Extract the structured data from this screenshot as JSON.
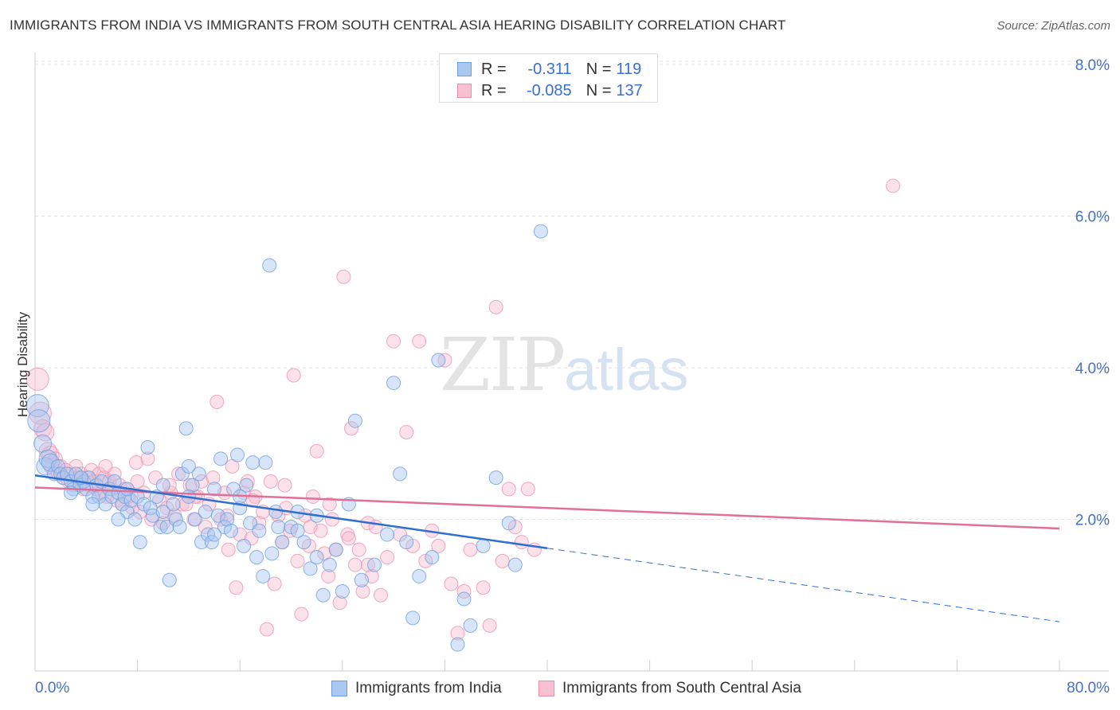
{
  "header": {
    "title": "IMMIGRANTS FROM INDIA VS IMMIGRANTS FROM SOUTH CENTRAL ASIA HEARING DISABILITY CORRELATION CHART",
    "source": "Source: ZipAtlas.com"
  },
  "watermark": {
    "zip": "ZIP",
    "atlas": "atlas"
  },
  "legend": {
    "r_label": "R =",
    "n_label": "N =",
    "rows": [
      {
        "r": "-0.311",
        "n": "119",
        "color": "#aac8f0",
        "border": "#6a9ee0"
      },
      {
        "r": "-0.085",
        "n": "137",
        "color": "#f8c0d0",
        "border": "#e890aa"
      }
    ]
  },
  "chart_data": {
    "type": "scatter",
    "title": "IMMIGRANTS FROM INDIA VS IMMIGRANTS FROM SOUTH CENTRAL ASIA HEARING DISABILITY CORRELATION CHART",
    "xlabel": "",
    "ylabel": "Hearing Disability",
    "xlim": [
      0,
      80
    ],
    "ylim": [
      0,
      8.2
    ],
    "x_tick_labels": [
      "0.0%",
      "80.0%"
    ],
    "y_ticks": [
      2.0,
      4.0,
      6.0,
      8.0
    ],
    "y_tick_labels": [
      "2.0%",
      "4.0%",
      "6.0%",
      "8.0%"
    ],
    "grid": true,
    "series": [
      {
        "name": "Immigrants from India",
        "color": "#6f9fe0",
        "fill": "#a9c6f0",
        "points": [
          [
            0.2,
            3.5
          ],
          [
            0.3,
            3.3
          ],
          [
            0.6,
            3.0
          ],
          [
            0.8,
            2.7
          ],
          [
            1.0,
            2.8
          ],
          [
            1.2,
            2.75
          ],
          [
            1.5,
            2.6
          ],
          [
            1.8,
            2.7
          ],
          [
            2.0,
            2.6
          ],
          [
            2.2,
            2.55
          ],
          [
            2.5,
            2.6
          ],
          [
            2.8,
            2.5
          ],
          [
            3.0,
            2.4
          ],
          [
            3.2,
            2.6
          ],
          [
            3.5,
            2.45
          ],
          [
            3.8,
            2.5
          ],
          [
            4.0,
            2.4
          ],
          [
            4.2,
            2.55
          ],
          [
            4.5,
            2.3
          ],
          [
            4.8,
            2.45
          ],
          [
            5.0,
            2.3
          ],
          [
            5.2,
            2.5
          ],
          [
            5.5,
            2.2
          ],
          [
            5.8,
            2.4
          ],
          [
            6.0,
            2.3
          ],
          [
            6.2,
            2.5
          ],
          [
            6.5,
            2.35
          ],
          [
            6.8,
            2.2
          ],
          [
            7.0,
            2.3
          ],
          [
            7.2,
            2.1
          ],
          [
            7.5,
            2.25
          ],
          [
            7.8,
            2.0
          ],
          [
            8.0,
            2.3
          ],
          [
            8.2,
            1.7
          ],
          [
            8.5,
            2.2
          ],
          [
            8.8,
            2.95
          ],
          [
            9.0,
            2.15
          ],
          [
            9.2,
            2.05
          ],
          [
            9.5,
            2.3
          ],
          [
            9.8,
            1.9
          ],
          [
            10.0,
            2.1
          ],
          [
            10.3,
            1.9
          ],
          [
            10.5,
            1.2
          ],
          [
            10.8,
            2.2
          ],
          [
            11.0,
            2.0
          ],
          [
            11.3,
            1.9
          ],
          [
            11.5,
            2.6
          ],
          [
            11.8,
            3.2
          ],
          [
            12.0,
            2.7
          ],
          [
            12.3,
            2.45
          ],
          [
            12.5,
            2.0
          ],
          [
            12.8,
            2.6
          ],
          [
            13.0,
            1.7
          ],
          [
            13.3,
            2.1
          ],
          [
            13.5,
            1.8
          ],
          [
            13.8,
            1.7
          ],
          [
            14.0,
            2.4
          ],
          [
            14.3,
            2.05
          ],
          [
            14.5,
            2.8
          ],
          [
            14.8,
            1.9
          ],
          [
            15.0,
            2.0
          ],
          [
            15.3,
            1.85
          ],
          [
            15.5,
            2.4
          ],
          [
            15.8,
            2.85
          ],
          [
            16.0,
            2.15
          ],
          [
            16.3,
            1.65
          ],
          [
            16.5,
            2.45
          ],
          [
            16.8,
            1.95
          ],
          [
            17.0,
            2.75
          ],
          [
            17.3,
            1.5
          ],
          [
            17.5,
            1.85
          ],
          [
            17.8,
            1.25
          ],
          [
            18.0,
            2.75
          ],
          [
            18.3,
            5.35
          ],
          [
            18.5,
            1.55
          ],
          [
            18.8,
            2.1
          ],
          [
            19.0,
            1.9
          ],
          [
            19.3,
            1.7
          ],
          [
            20.0,
            1.9
          ],
          [
            20.5,
            2.1
          ],
          [
            21.0,
            1.7
          ],
          [
            21.5,
            1.35
          ],
          [
            22.0,
            1.5
          ],
          [
            22.5,
            1.0
          ],
          [
            23.0,
            1.4
          ],
          [
            23.5,
            1.6
          ],
          [
            24.0,
            1.05
          ],
          [
            24.5,
            2.2
          ],
          [
            25.0,
            3.3
          ],
          [
            25.5,
            1.2
          ],
          [
            26.5,
            1.4
          ],
          [
            27.5,
            1.8
          ],
          [
            28.0,
            3.8
          ],
          [
            28.5,
            2.6
          ],
          [
            29.0,
            1.7
          ],
          [
            29.5,
            0.7
          ],
          [
            30.0,
            1.25
          ],
          [
            31.0,
            1.5
          ],
          [
            31.5,
            4.1
          ],
          [
            33.0,
            0.35
          ],
          [
            33.5,
            0.95
          ],
          [
            34.0,
            0.6
          ],
          [
            35.0,
            1.65
          ],
          [
            36.0,
            2.55
          ],
          [
            37.0,
            1.95
          ],
          [
            37.5,
            1.4
          ],
          [
            39.5,
            5.8
          ],
          [
            10.0,
            2.45
          ],
          [
            12.0,
            2.3
          ],
          [
            4.5,
            2.2
          ],
          [
            6.5,
            2.0
          ],
          [
            7.2,
            2.4
          ],
          [
            14.0,
            1.8
          ],
          [
            16.0,
            2.3
          ],
          [
            20.5,
            1.85
          ],
          [
            22.0,
            2.05
          ],
          [
            2.8,
            2.35
          ],
          [
            3.6,
            2.55
          ]
        ],
        "trend": {
          "x0": 0,
          "y0": 2.58,
          "x1": 40,
          "y1": 1.62,
          "dash_x1": 80,
          "dash_y1": 0.65
        }
      },
      {
        "name": "Immigrants from South Central Asia",
        "color": "#e890aa",
        "fill": "#f6bcd0",
        "points": [
          [
            0.2,
            3.85
          ],
          [
            0.4,
            3.4
          ],
          [
            0.6,
            3.2
          ],
          [
            0.8,
            3.15
          ],
          [
            1.0,
            2.9
          ],
          [
            1.2,
            2.85
          ],
          [
            1.4,
            2.7
          ],
          [
            1.6,
            2.8
          ],
          [
            1.8,
            2.6
          ],
          [
            2.0,
            2.7
          ],
          [
            2.2,
            2.55
          ],
          [
            2.4,
            2.65
          ],
          [
            2.6,
            2.5
          ],
          [
            2.8,
            2.6
          ],
          [
            3.0,
            2.45
          ],
          [
            3.2,
            2.7
          ],
          [
            3.4,
            2.55
          ],
          [
            3.6,
            2.6
          ],
          [
            3.8,
            2.4
          ],
          [
            4.0,
            2.55
          ],
          [
            4.2,
            2.45
          ],
          [
            4.4,
            2.65
          ],
          [
            4.6,
            2.5
          ],
          [
            4.8,
            2.4
          ],
          [
            5.0,
            2.6
          ],
          [
            5.2,
            2.35
          ],
          [
            5.4,
            2.55
          ],
          [
            5.6,
            2.3
          ],
          [
            5.8,
            2.5
          ],
          [
            6.0,
            2.4
          ],
          [
            6.2,
            2.6
          ],
          [
            6.4,
            2.25
          ],
          [
            6.6,
            2.45
          ],
          [
            6.8,
            2.2
          ],
          [
            7.0,
            2.4
          ],
          [
            7.3,
            2.3
          ],
          [
            7.6,
            2.15
          ],
          [
            7.9,
            2.75
          ],
          [
            8.2,
            2.1
          ],
          [
            8.5,
            2.35
          ],
          [
            8.8,
            2.8
          ],
          [
            9.1,
            2.0
          ],
          [
            9.4,
            2.55
          ],
          [
            9.7,
            2.25
          ],
          [
            10.0,
            1.95
          ],
          [
            10.3,
            2.15
          ],
          [
            10.6,
            2.35
          ],
          [
            10.9,
            2.05
          ],
          [
            11.2,
            2.6
          ],
          [
            11.5,
            2.2
          ],
          [
            11.8,
            2.2
          ],
          [
            12.1,
            2.45
          ],
          [
            12.4,
            2.0
          ],
          [
            12.7,
            2.3
          ],
          [
            13.0,
            2.5
          ],
          [
            13.3,
            1.9
          ],
          [
            13.6,
            2.2
          ],
          [
            13.9,
            2.55
          ],
          [
            14.2,
            3.55
          ],
          [
            14.5,
            2.0
          ],
          [
            14.8,
            2.35
          ],
          [
            15.1,
            1.6
          ],
          [
            15.4,
            2.7
          ],
          [
            15.7,
            1.1
          ],
          [
            16.0,
            1.8
          ],
          [
            16.3,
            2.35
          ],
          [
            16.6,
            2.5
          ],
          [
            16.9,
            1.75
          ],
          [
            17.2,
            2.3
          ],
          [
            17.5,
            1.95
          ],
          [
            17.8,
            2.1
          ],
          [
            18.1,
            0.55
          ],
          [
            18.4,
            2.5
          ],
          [
            18.7,
            1.15
          ],
          [
            19.0,
            2.05
          ],
          [
            19.3,
            1.7
          ],
          [
            19.6,
            2.15
          ],
          [
            19.9,
            1.85
          ],
          [
            20.2,
            3.9
          ],
          [
            20.5,
            1.45
          ],
          [
            20.8,
            0.75
          ],
          [
            21.1,
            2.05
          ],
          [
            21.4,
            1.65
          ],
          [
            21.7,
            2.3
          ],
          [
            22.0,
            2.9
          ],
          [
            22.3,
            1.85
          ],
          [
            22.6,
            1.55
          ],
          [
            22.9,
            1.25
          ],
          [
            23.2,
            2.0
          ],
          [
            23.5,
            1.6
          ],
          [
            23.8,
            0.9
          ],
          [
            24.1,
            5.2
          ],
          [
            24.4,
            1.8
          ],
          [
            24.7,
            3.2
          ],
          [
            25.0,
            1.4
          ],
          [
            25.3,
            1.6
          ],
          [
            25.6,
            1.05
          ],
          [
            26.0,
            1.95
          ],
          [
            26.3,
            1.25
          ],
          [
            26.6,
            1.9
          ],
          [
            27.0,
            1.0
          ],
          [
            27.5,
            1.5
          ],
          [
            28.0,
            4.35
          ],
          [
            28.5,
            1.8
          ],
          [
            29.0,
            3.15
          ],
          [
            29.5,
            1.65
          ],
          [
            30.0,
            4.35
          ],
          [
            30.5,
            1.45
          ],
          [
            31.0,
            1.85
          ],
          [
            31.5,
            1.65
          ],
          [
            32.0,
            4.1
          ],
          [
            32.5,
            1.15
          ],
          [
            33.0,
            0.5
          ],
          [
            33.5,
            1.05
          ],
          [
            34.0,
            1.6
          ],
          [
            35.0,
            1.1
          ],
          [
            35.5,
            0.6
          ],
          [
            36.0,
            4.8
          ],
          [
            36.5,
            1.45
          ],
          [
            37.0,
            2.4
          ],
          [
            37.5,
            1.9
          ],
          [
            38.0,
            1.7
          ],
          [
            38.5,
            2.4
          ],
          [
            39.0,
            1.6
          ],
          [
            67.0,
            6.4
          ],
          [
            5.5,
            2.7
          ],
          [
            8.0,
            2.5
          ],
          [
            10.5,
            2.45
          ],
          [
            12.5,
            2.3
          ],
          [
            15.0,
            2.05
          ],
          [
            17.0,
            2.25
          ],
          [
            19.5,
            2.45
          ],
          [
            21.5,
            1.9
          ],
          [
            23.0,
            2.2
          ],
          [
            24.5,
            1.75
          ],
          [
            26.0,
            1.4
          ]
        ],
        "trend": {
          "x0": 0,
          "y0": 2.42,
          "x1": 80,
          "y1": 1.88
        }
      }
    ]
  },
  "bottom_legend": [
    {
      "label": "Immigrants from India",
      "fill": "#aac8f0",
      "border": "#6a9ee0"
    },
    {
      "label": "Immigrants from South Central Asia",
      "fill": "#f8c0d0",
      "border": "#e890aa"
    }
  ]
}
